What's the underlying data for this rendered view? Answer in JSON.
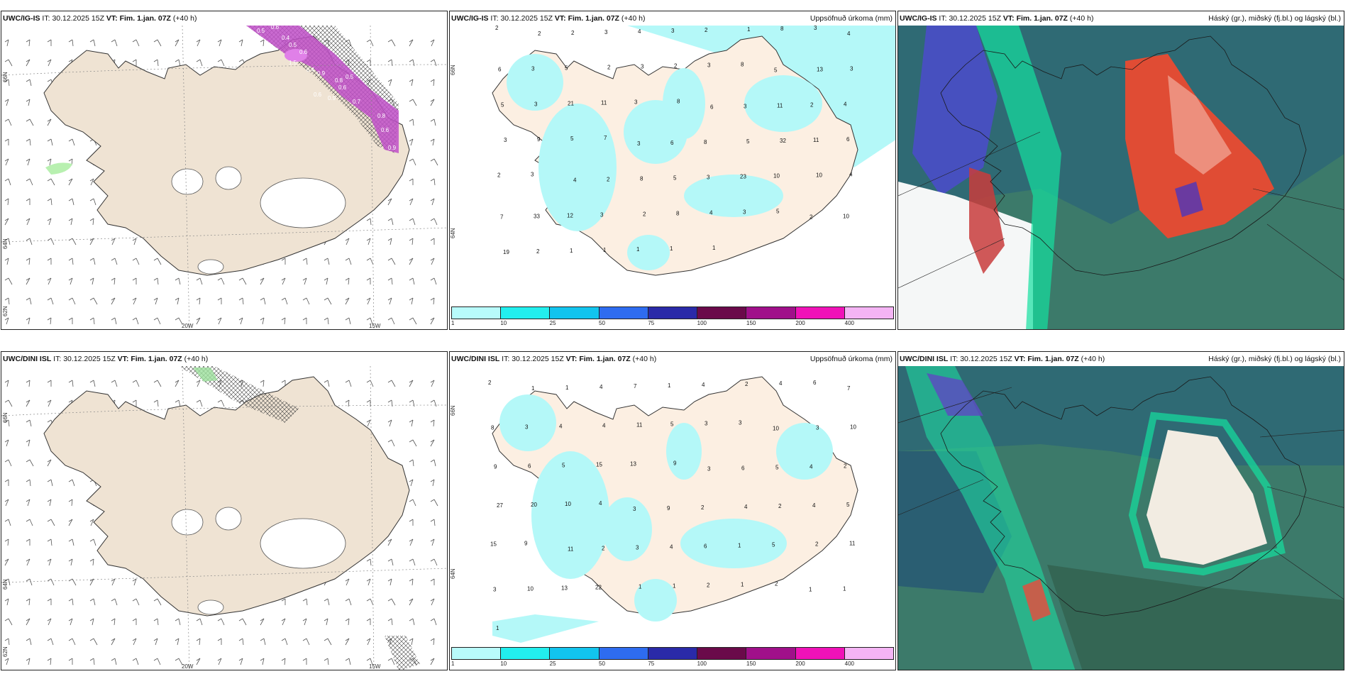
{
  "panels": [
    {
      "model": "UWC/IG-IS",
      "it_label": "IT:",
      "it": "30.12.2025 15Z",
      "vt_label": "VT:",
      "vt": "Fim. 1.jan. 07Z",
      "lead": "(+40 h)",
      "right": ""
    },
    {
      "model": "UWC/IG-IS",
      "it_label": "IT:",
      "it": "30.12.2025 15Z",
      "vt_label": "VT:",
      "vt": "Fim. 1.jan. 07Z",
      "lead": "(+40 h)",
      "right": "Uppsöfnuð úrkoma (mm)"
    },
    {
      "model": "UWC/IG-IS",
      "it_label": "IT:",
      "it": "30.12.2025 15Z",
      "vt_label": "VT:",
      "vt": "Fim. 1.jan. 07Z",
      "lead": "(+40 h)",
      "right": "Háský (gr.), miðský (fj.bl.) og lágský (bl.)"
    },
    {
      "model": "UWC/DINI ISL",
      "it_label": "IT:",
      "it": "30.12.2025 15Z",
      "vt_label": "VT:",
      "vt": "Fim. 1.jan. 07Z",
      "lead": "(+40 h)",
      "right": ""
    },
    {
      "model": "UWC/DINI ISL",
      "it_label": "IT:",
      "it": "30.12.2025 15Z",
      "vt_label": "VT:",
      "vt": "Fim. 1.jan. 07Z",
      "lead": "(+40 h)",
      "right": "Uppsöfnuð úrkoma (mm)"
    },
    {
      "model": "UWC/DINI ISL",
      "it_label": "IT:",
      "it": "30.12.2025 15Z",
      "vt_label": "VT:",
      "vt": "Fim. 1.jan. 07Z",
      "lead": "(+40 h)",
      "right": "Háský (gr.), miðský (fj.bl.) og lágský (bl.)"
    }
  ],
  "axis": {
    "lon_20": "20W",
    "lon_15": "15W",
    "lat_66": "66N",
    "lat_64": "64N",
    "lat_62": "62N"
  },
  "precip_colorbar": {
    "colors": [
      "#b8fbfb",
      "#22eeee",
      "#12c4ee",
      "#2e6cf0",
      "#2a2aa8",
      "#6a0a4a",
      "#a0108a",
      "#f012b8",
      "#f4b4f4"
    ],
    "ticks": [
      "1",
      "10",
      "25",
      "50",
      "75",
      "100",
      "150",
      "200",
      "400"
    ]
  },
  "wind_map_top": {
    "labels": [
      "0.6",
      "0.5",
      "0.6",
      "0.4",
      "0.5",
      "1.5",
      "0.6",
      "0.4",
      "0.9",
      "0.8",
      "0.5",
      "0.6",
      "0.9",
      "0.6",
      "0.7",
      "0.8",
      "0.6",
      "0.9"
    ]
  },
  "precip_top": {
    "labels": [
      "2",
      "2",
      "2",
      "3",
      "4",
      "3",
      "2",
      "1",
      "8",
      "3",
      "4",
      "6",
      "3",
      "5",
      "2",
      "3",
      "2",
      "3",
      "8",
      "5",
      "13",
      "3",
      "5",
      "3",
      "21",
      "11",
      "3",
      "8",
      "6",
      "3",
      "11",
      "2",
      "4",
      "3",
      "9",
      "5",
      "7",
      "3",
      "6",
      "8",
      "5",
      "32",
      "11",
      "6",
      "2",
      "3",
      "4",
      "2",
      "8",
      "5",
      "3",
      "23",
      "10",
      "10",
      "4",
      "7",
      "33",
      "12",
      "3",
      "2",
      "8",
      "4",
      "3",
      "5",
      "2",
      "10",
      "19",
      "2",
      "1",
      "1",
      "1",
      "1",
      "1"
    ]
  },
  "precip_bottom": {
    "labels": [
      "2",
      "1",
      "1",
      "4",
      "7",
      "1",
      "4",
      "2",
      "4",
      "6",
      "7",
      "8",
      "3",
      "4",
      "4",
      "11",
      "5",
      "3",
      "3",
      "10",
      "3",
      "10",
      "9",
      "6",
      "5",
      "15",
      "13",
      "9",
      "3",
      "6",
      "5",
      "4",
      "2",
      "27",
      "20",
      "10",
      "4",
      "3",
      "9",
      "2",
      "4",
      "2",
      "4",
      "5",
      "15",
      "9",
      "11",
      "2",
      "3",
      "4",
      "6",
      "1",
      "5",
      "2",
      "11",
      "3",
      "10",
      "13",
      "22",
      "1",
      "1",
      "2",
      "1",
      "2",
      "1",
      "1",
      "1"
    ]
  }
}
